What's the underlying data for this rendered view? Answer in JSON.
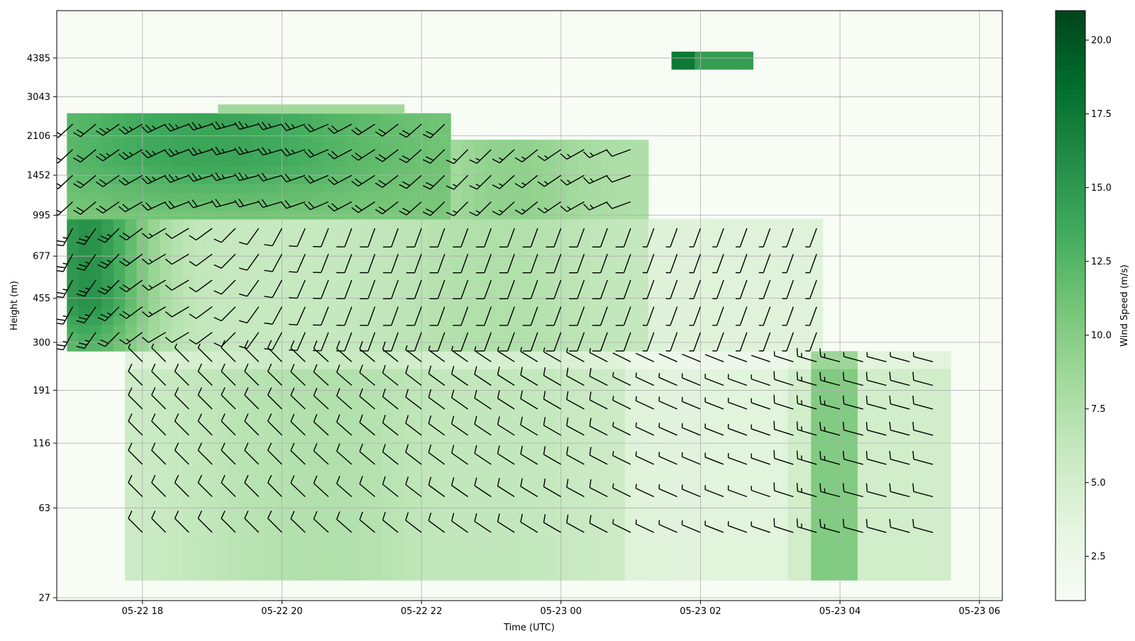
{
  "chart_data": {
    "type": "heatmap",
    "subtype": "wind-profile-time-height with wind barbs",
    "xlabel": "Time (UTC)",
    "ylabel": "Height (m)",
    "x_tick_labels": [
      "05-22 18",
      "05-22 20",
      "05-22 22",
      "05-23 00",
      "05-23 02",
      "05-23 04",
      "05-23 06"
    ],
    "y_tick_labels": [
      "27",
      "63",
      "116",
      "191",
      "300",
      "455",
      "677",
      "995",
      "1452",
      "2106",
      "3043",
      "4385"
    ],
    "y_scale": "log",
    "x_range_hours": [
      -1.25,
      12.3
    ],
    "colorbar": {
      "label": "Wind Speed (m/s)",
      "range": [
        1.0,
        21.0
      ],
      "ticks": [
        "2.5",
        "5.0",
        "7.5",
        "10.0",
        "12.5",
        "15.0",
        "17.5",
        "20.0"
      ],
      "colormap": "Greens",
      "colors": [
        "#f7fcf5",
        "#e5f5e0",
        "#c7e9c0",
        "#a1d99b",
        "#74c476",
        "#41ab5d",
        "#238b45",
        "#006d2c",
        "#00441b"
      ]
    },
    "grid": true,
    "series": [
      {
        "height_range_m": [
          30,
          280
        ],
        "time_range": [
          "05-22 17:50",
          "05-23 05:35"
        ],
        "typical_speed": 8,
        "note": "low-level winds, 9-13 m/s near 05-23 03:45"
      },
      {
        "height_range_m": [
          280,
          1000
        ],
        "time_range": [
          "05-22 17:10",
          "05-23 03:45"
        ],
        "typical_speed": 9,
        "note": "12-17 m/s near 05-22 17:30"
      },
      {
        "height_range_m": [
          1000,
          2500
        ],
        "time_range": [
          "05-22 17:10",
          "05-22 22:25"
        ],
        "typical_speed": 12
      },
      {
        "height_range_m": [
          1000,
          1900
        ],
        "time_range": [
          "05-22 22:30",
          "05-23 01:20"
        ],
        "typical_speed": 8
      },
      {
        "height_range_m": [
          4000,
          4700
        ],
        "time_range": [
          "05-23 01:35",
          "05-23 02:45"
        ],
        "typical_speed": 17
      }
    ]
  }
}
